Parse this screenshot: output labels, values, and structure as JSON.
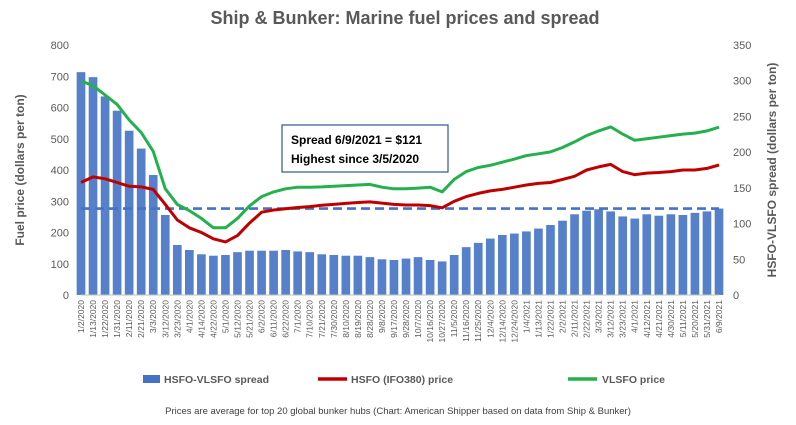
{
  "chart_data": {
    "type": "bar+line",
    "title": "Ship & Bunker: Marine fuel prices and spread",
    "ylabel_left": "Fuel price  (dollars per ton)",
    "ylabel_right": "HSFO-VLSFO spread  (dollars per ton)",
    "ylim_left": [
      0,
      800
    ],
    "ylim_right": [
      0,
      350
    ],
    "yticks_left": [
      "0",
      "100",
      "200",
      "300",
      "400",
      "500",
      "600",
      "700",
      "800"
    ],
    "yticks_right": [
      "0",
      "50",
      "100",
      "150",
      "200",
      "250",
      "300",
      "350"
    ],
    "x_ticks": [
      "1/2/2020",
      "1/13/2020",
      "1/22/2020",
      "1/31/2020",
      "2/11/2020",
      "2/21/2020",
      "3/3/2020",
      "3/12/2020",
      "3/23/2020",
      "4/1/2020",
      "4/14/2020",
      "4/22/2020",
      "5/1/2020",
      "5/12/2020",
      "5/21/2020",
      "6/2/2020",
      "6/11/2020",
      "6/22/2020",
      "7/1/2020",
      "7/10/2020",
      "7/21/2020",
      "7/30/2020",
      "8/10/2020",
      "8/19/2020",
      "8/28/2020",
      "9/8/2020",
      "9/17/2020",
      "9/28/2020",
      "10/7/2020",
      "10/16/2020",
      "10/27/2020",
      "11/5/2020",
      "11/16/2020",
      "11/25/2020",
      "12/4/2020",
      "12/14/2020",
      "12/24/2020",
      "1/4/2021",
      "1/13/2021",
      "1/22/2021",
      "2/2/2021",
      "2/11/2021",
      "2/22/2021",
      "3/3/2021",
      "3/12/2021",
      "3/23/2021",
      "4/1/2021",
      "4/12/2021",
      "4/21/2021",
      "4/30/2021",
      "5/11/2021",
      "5/20/2021",
      "5/31/2021",
      "6/9/2021"
    ],
    "series": [
      {
        "name": "HSFO-VLSFO spread",
        "axis": "right",
        "kind": "bar",
        "color": "#4472c4",
        "x": [
          "1/2/2020",
          "1/13/2020",
          "1/22/2020",
          "1/31/2020",
          "2/11/2020",
          "2/21/2020",
          "3/3/2020",
          "3/12/2020",
          "3/23/2020",
          "4/1/2020",
          "4/14/2020",
          "4/22/2020",
          "5/1/2020",
          "5/12/2020",
          "5/21/2020",
          "6/2/2020",
          "6/11/2020",
          "6/22/2020",
          "7/1/2020",
          "7/10/2020",
          "7/21/2020",
          "7/30/2020",
          "8/10/2020",
          "8/19/2020",
          "8/28/2020",
          "9/8/2020",
          "9/17/2020",
          "9/28/2020",
          "10/7/2020",
          "10/16/2020",
          "10/27/2020",
          "11/5/2020",
          "11/16/2020",
          "11/25/2020",
          "12/4/2020",
          "12/14/2020",
          "12/24/2020",
          "1/4/2021",
          "1/13/2021",
          "1/22/2021",
          "2/2/2021",
          "2/11/2021",
          "2/22/2021",
          "3/3/2021",
          "3/12/2021",
          "3/23/2021",
          "4/1/2021",
          "4/12/2021",
          "4/21/2021",
          "4/30/2021",
          "5/11/2021",
          "5/20/2021",
          "5/31/2021",
          "6/9/2021"
        ],
        "values": [
          312,
          305,
          278,
          258,
          230,
          205,
          168,
          112,
          70,
          63,
          57,
          55,
          56,
          60,
          62,
          62,
          62,
          63,
          61,
          60,
          57,
          56,
          55,
          55,
          53,
          50,
          49,
          51,
          53,
          49,
          47,
          56,
          67,
          73,
          79,
          84,
          86,
          89,
          93,
          98,
          104,
          113,
          118,
          120,
          117,
          110,
          107,
          113,
          111,
          113,
          112,
          115,
          117,
          121
        ]
      },
      {
        "name": "HSFO (IFO380) price",
        "axis": "left",
        "kind": "line",
        "color": "#c00000",
        "x": [
          "1/2/2020",
          "1/13/2020",
          "1/22/2020",
          "1/31/2020",
          "2/11/2020",
          "2/21/2020",
          "3/3/2020",
          "3/12/2020",
          "3/23/2020",
          "4/1/2020",
          "4/14/2020",
          "4/22/2020",
          "5/1/2020",
          "5/12/2020",
          "5/21/2020",
          "6/2/2020",
          "6/11/2020",
          "6/22/2020",
          "7/1/2020",
          "7/10/2020",
          "7/21/2020",
          "7/30/2020",
          "8/10/2020",
          "8/19/2020",
          "8/28/2020",
          "9/8/2020",
          "9/17/2020",
          "9/28/2020",
          "10/7/2020",
          "10/16/2020",
          "10/27/2020",
          "11/5/2020",
          "11/16/2020",
          "11/25/2020",
          "12/4/2020",
          "12/14/2020",
          "12/24/2020",
          "1/4/2021",
          "1/13/2021",
          "1/22/2021",
          "2/2/2021",
          "2/11/2021",
          "2/22/2021",
          "3/3/2021",
          "3/12/2021",
          "3/23/2021",
          "4/1/2021",
          "4/12/2021",
          "4/21/2021",
          "4/30/2021",
          "5/11/2021",
          "5/20/2021",
          "5/31/2021",
          "6/9/2021"
        ],
        "values": [
          360,
          378,
          372,
          360,
          348,
          346,
          338,
          290,
          240,
          215,
          200,
          180,
          170,
          190,
          230,
          265,
          272,
          276,
          280,
          283,
          287,
          290,
          293,
          296,
          298,
          294,
          290,
          288,
          288,
          286,
          279,
          300,
          315,
          325,
          333,
          338,
          345,
          352,
          357,
          360,
          370,
          380,
          400,
          410,
          418,
          395,
          385,
          390,
          392,
          395,
          400,
          400,
          405,
          416
        ]
      },
      {
        "name": "VLSFO price",
        "axis": "left",
        "kind": "line",
        "color": "#22b14c",
        "x": [
          "1/2/2020",
          "1/13/2020",
          "1/22/2020",
          "1/31/2020",
          "2/11/2020",
          "2/21/2020",
          "3/3/2020",
          "3/12/2020",
          "3/23/2020",
          "4/1/2020",
          "4/14/2020",
          "4/22/2020",
          "5/1/2020",
          "5/12/2020",
          "5/21/2020",
          "6/2/2020",
          "6/11/2020",
          "6/22/2020",
          "7/1/2020",
          "7/10/2020",
          "7/21/2020",
          "7/30/2020",
          "8/10/2020",
          "8/19/2020",
          "8/28/2020",
          "9/8/2020",
          "9/17/2020",
          "9/28/2020",
          "10/7/2020",
          "10/16/2020",
          "10/27/2020",
          "11/5/2020",
          "11/16/2020",
          "11/25/2020",
          "12/4/2020",
          "12/14/2020",
          "12/24/2020",
          "1/4/2021",
          "1/13/2021",
          "1/22/2021",
          "2/2/2021",
          "2/11/2021",
          "2/22/2021",
          "3/3/2021",
          "3/12/2021",
          "3/23/2021",
          "4/1/2021",
          "4/12/2021",
          "4/21/2021",
          "4/30/2021",
          "5/11/2021",
          "5/20/2021",
          "5/31/2021",
          "6/9/2021"
        ],
        "values": [
          685,
          670,
          640,
          610,
          560,
          520,
          460,
          340,
          290,
          270,
          245,
          215,
          215,
          245,
          285,
          315,
          330,
          340,
          345,
          345,
          346,
          348,
          350,
          352,
          354,
          345,
          340,
          340,
          342,
          345,
          330,
          370,
          395,
          408,
          415,
          425,
          435,
          446,
          452,
          458,
          472,
          490,
          510,
          525,
          538,
          515,
          495,
          500,
          505,
          510,
          515,
          518,
          525,
          537
        ]
      }
    ],
    "annotation": {
      "lines": [
        "Spread 6/9/2021 = $121",
        "Highest since 3/5/2020"
      ],
      "reference_value": 121,
      "reference_axis": "right",
      "reference_style": "dashed",
      "reference_color": "#4472c4"
    },
    "legend": {
      "position": "bottom",
      "entries": [
        "HSFO-VLSFO spread",
        "HSFO (IFO380) price",
        "VLSFO price"
      ]
    },
    "caption": "Prices are average for top 20 global bunker hubs (Chart: American Shipper based on data from Ship & Bunker)",
    "grid": false
  }
}
